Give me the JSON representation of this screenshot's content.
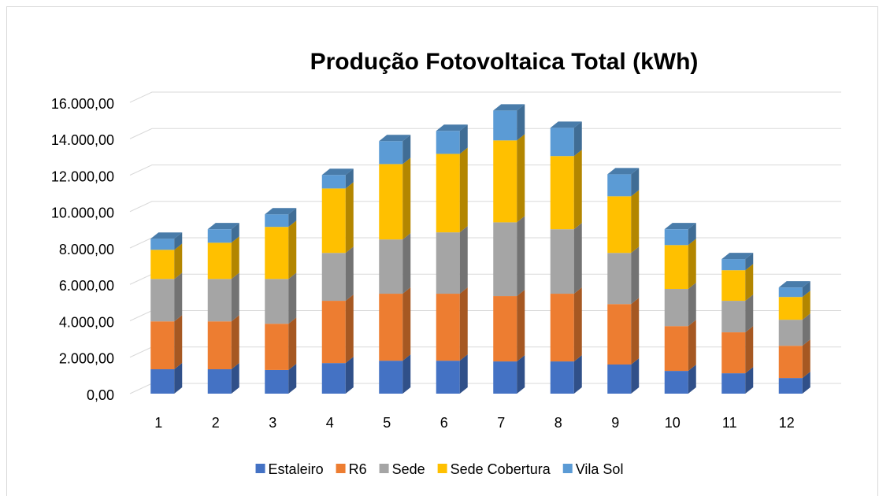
{
  "chart_data": {
    "type": "bar3d_stacked",
    "title": "Produção Fotovoltaica Total (kWh)",
    "categories": [
      "1",
      "2",
      "3",
      "4",
      "5",
      "6",
      "7",
      "8",
      "9",
      "10",
      "11",
      "12"
    ],
    "series": [
      {
        "name": "Estaleiro",
        "color": "#4472c4",
        "values": [
          1340,
          1340,
          1300,
          1680,
          1810,
          1810,
          1770,
          1770,
          1600,
          1250,
          1120,
          860
        ]
      },
      {
        "name": "R6",
        "color": "#ed7d31",
        "values": [
          2630,
          2630,
          2540,
          3420,
          3680,
          3680,
          3590,
          3720,
          3320,
          2460,
          2250,
          1770
        ]
      },
      {
        "name": "Sede",
        "color": "#a5a5a5",
        "values": [
          2330,
          2330,
          2460,
          2630,
          2980,
          3370,
          4050,
          3540,
          2810,
          2040,
          1730,
          1430
        ]
      },
      {
        "name": "Sede Cobertura",
        "color": "#ffc000",
        "values": [
          1600,
          1990,
          2860,
          3540,
          4140,
          4310,
          4500,
          4020,
          3110,
          2410,
          1680,
          1250
        ]
      },
      {
        "name": "Vila Sol",
        "color": "#5b9bd5",
        "values": [
          610,
          740,
          690,
          740,
          1260,
          1260,
          1640,
          1550,
          1210,
          870,
          610,
          520
        ]
      }
    ],
    "ylim": [
      0,
      16000
    ],
    "yticks": [
      {
        "value": 0,
        "label": "0,00"
      },
      {
        "value": 2000,
        "label": "2.000,00"
      },
      {
        "value": 4000,
        "label": "4.000,00"
      },
      {
        "value": 6000,
        "label": "6.000,00"
      },
      {
        "value": 8000,
        "label": "8.000,00"
      },
      {
        "value": 10000,
        "label": "10.000,00"
      },
      {
        "value": 12000,
        "label": "12.000,00"
      },
      {
        "value": 14000,
        "label": "14.000,00"
      },
      {
        "value": 16000,
        "label": "16.000,00"
      }
    ],
    "grid": true,
    "legend": "bottom"
  }
}
